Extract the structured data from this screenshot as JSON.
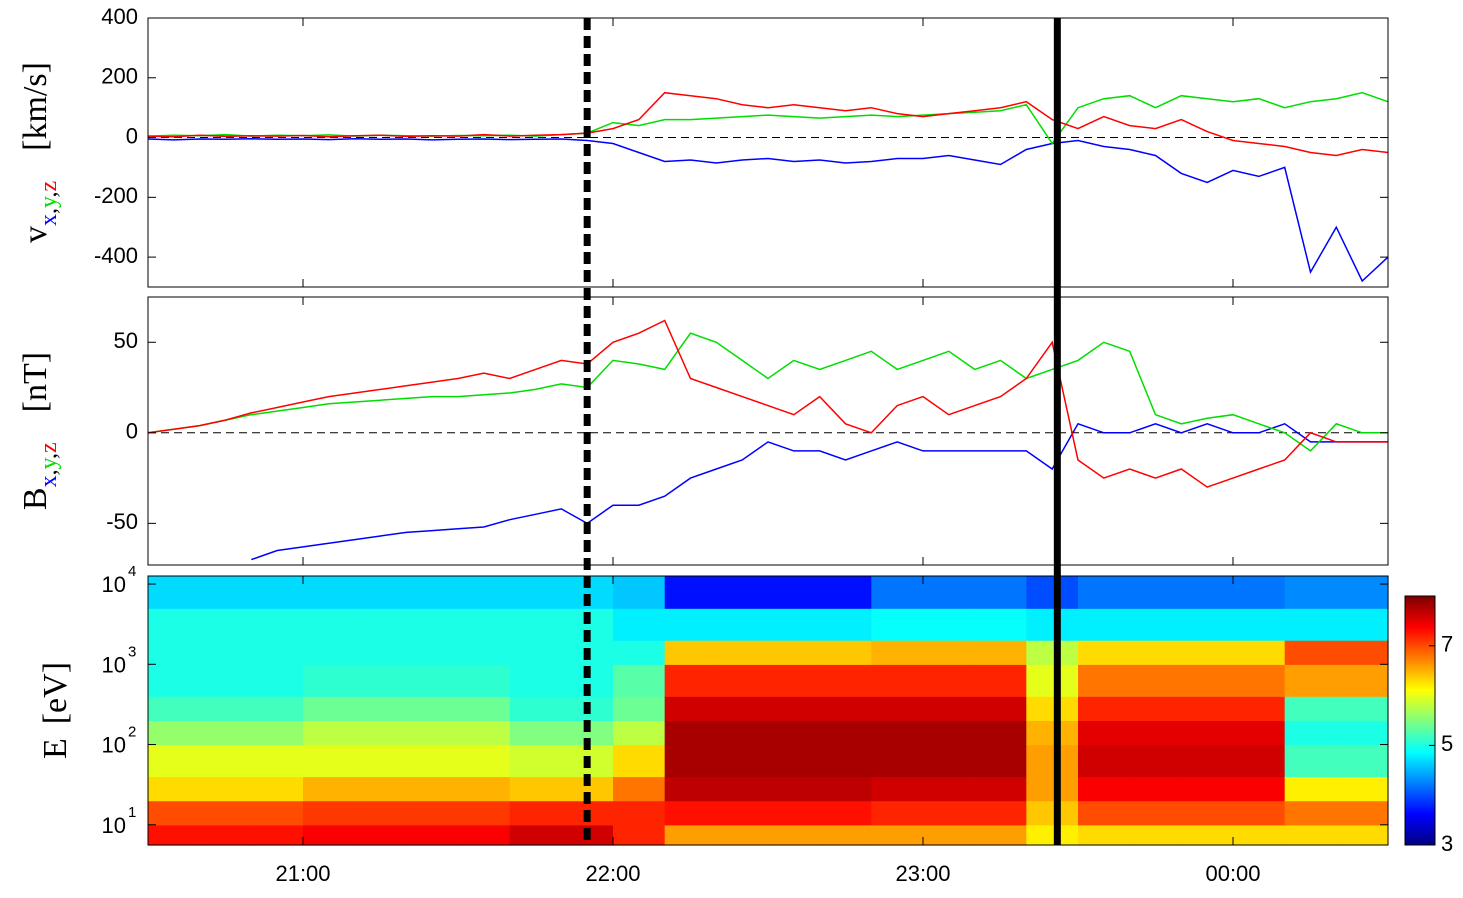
{
  "vlines": [
    {
      "time": "21:55",
      "style": "dashed"
    },
    {
      "time": "23:26",
      "style": "solid"
    }
  ],
  "chart_data": [
    {
      "type": "line",
      "ylabel": "v",
      "ylabel_separator": ",",
      "yunit": "[km/s]",
      "xlim": [
        "20:30",
        "00:30"
      ],
      "xticks": [
        "21:00",
        "22:00",
        "23:00",
        "00:00"
      ],
      "ylim": [
        -500,
        400
      ],
      "yticks": [
        400,
        200,
        0,
        -200,
        -400
      ],
      "hline": 0,
      "x": [
        "20:30",
        "20:35",
        "20:40",
        "20:45",
        "20:50",
        "20:55",
        "21:00",
        "21:05",
        "21:10",
        "21:15",
        "21:20",
        "21:25",
        "21:30",
        "21:35",
        "21:40",
        "21:45",
        "21:50",
        "21:55",
        "22:00",
        "22:05",
        "22:10",
        "22:15",
        "22:20",
        "22:25",
        "22:30",
        "22:35",
        "22:40",
        "22:45",
        "22:50",
        "22:55",
        "23:00",
        "23:05",
        "23:10",
        "23:15",
        "23:20",
        "23:25",
        "23:30",
        "23:35",
        "23:40",
        "23:45",
        "23:50",
        "23:55",
        "00:00",
        "00:05",
        "00:10",
        "00:15",
        "00:20",
        "00:25",
        "00:30"
      ],
      "series": [
        {
          "name": "x",
          "color": "#0000ff",
          "values": [
            -5,
            -8,
            -5,
            -6,
            -4,
            -6,
            -5,
            -7,
            -4,
            -6,
            -5,
            -8,
            -6,
            -5,
            -7,
            -6,
            -5,
            -10,
            -20,
            -50,
            -80,
            -75,
            -85,
            -75,
            -70,
            -80,
            -75,
            -85,
            -80,
            -70,
            -70,
            -60,
            -75,
            -90,
            -40,
            -20,
            -10,
            -30,
            -40,
            -60,
            -120,
            -150,
            -110,
            -130,
            -100,
            -450,
            -300,
            -480,
            -400
          ]
        },
        {
          "name": "y",
          "color": "#00dd00",
          "values": [
            5,
            8,
            6,
            10,
            5,
            8,
            6,
            9,
            5,
            8,
            6,
            5,
            7,
            6,
            8,
            5,
            10,
            15,
            50,
            40,
            60,
            60,
            65,
            70,
            75,
            70,
            65,
            70,
            75,
            70,
            75,
            80,
            85,
            90,
            110,
            -20,
            100,
            130,
            140,
            100,
            140,
            130,
            120,
            130,
            100,
            120,
            130,
            150,
            120
          ]
        },
        {
          "name": "z",
          "color": "#ff0000",
          "values": [
            5,
            3,
            8,
            4,
            6,
            5,
            7,
            3,
            6,
            8,
            4,
            6,
            5,
            10,
            5,
            8,
            10,
            15,
            30,
            60,
            150,
            140,
            130,
            110,
            100,
            110,
            100,
            90,
            100,
            80,
            70,
            80,
            90,
            100,
            120,
            60,
            30,
            70,
            40,
            30,
            60,
            20,
            -10,
            -20,
            -30,
            -50,
            -60,
            -40,
            -50
          ]
        }
      ]
    },
    {
      "type": "line",
      "ylabel": "B",
      "ylabel_separator": ",",
      "yunit": "[nT]",
      "xlim": [
        "20:30",
        "00:30"
      ],
      "xticks": [
        "21:00",
        "22:00",
        "23:00",
        "00:00"
      ],
      "ylim": [
        -73,
        75
      ],
      "yticks": [
        50,
        0,
        -50
      ],
      "hline": 0,
      "x": [
        "20:30",
        "20:35",
        "20:40",
        "20:45",
        "20:50",
        "20:55",
        "21:00",
        "21:05",
        "21:10",
        "21:15",
        "21:20",
        "21:25",
        "21:30",
        "21:35",
        "21:40",
        "21:45",
        "21:50",
        "21:55",
        "22:00",
        "22:05",
        "22:10",
        "22:15",
        "22:20",
        "22:25",
        "22:30",
        "22:35",
        "22:40",
        "22:45",
        "22:50",
        "22:55",
        "23:00",
        "23:05",
        "23:10",
        "23:15",
        "23:20",
        "23:25",
        "23:30",
        "23:35",
        "23:40",
        "23:45",
        "23:50",
        "23:55",
        "00:00",
        "00:05",
        "00:10",
        "00:15",
        "00:20",
        "00:25",
        "00:30"
      ],
      "series": [
        {
          "name": "x",
          "color": "#0000ff",
          "values": [
            null,
            null,
            null,
            null,
            -70,
            -65,
            -63,
            -61,
            -59,
            -57,
            -55,
            -54,
            -53,
            -52,
            -48,
            -45,
            -42,
            -50,
            -40,
            -40,
            -35,
            -25,
            -20,
            -15,
            -5,
            -10,
            -10,
            -15,
            -10,
            -5,
            -10,
            -10,
            -10,
            -10,
            -10,
            -20,
            5,
            0,
            0,
            5,
            0,
            5,
            0,
            0,
            5,
            -5,
            -5,
            -5,
            -5
          ]
        },
        {
          "name": "y",
          "color": "#00dd00",
          "values": [
            0,
            2,
            4,
            7,
            10,
            12,
            14,
            16,
            17,
            18,
            19,
            20,
            20,
            21,
            22,
            24,
            27,
            25,
            40,
            38,
            35,
            55,
            50,
            40,
            30,
            40,
            35,
            40,
            45,
            35,
            40,
            45,
            35,
            40,
            30,
            35,
            40,
            50,
            45,
            10,
            5,
            8,
            10,
            5,
            0,
            -10,
            5,
            0,
            0
          ]
        },
        {
          "name": "z",
          "color": "#ff0000",
          "values": [
            0,
            2,
            4,
            7,
            11,
            14,
            17,
            20,
            22,
            24,
            26,
            28,
            30,
            33,
            30,
            35,
            40,
            38,
            50,
            55,
            62,
            30,
            25,
            20,
            15,
            10,
            20,
            5,
            0,
            15,
            20,
            10,
            15,
            20,
            30,
            50,
            -15,
            -25,
            -20,
            -25,
            -20,
            -30,
            -25,
            -20,
            -15,
            0,
            -5,
            -5,
            -5
          ]
        }
      ]
    },
    {
      "type": "heatmap",
      "ylabel": "E",
      "yunit": "[eV]",
      "log_y": true,
      "xlim": [
        "20:30",
        "00:30"
      ],
      "xticks": [
        "21:00",
        "22:00",
        "23:00",
        "00:00"
      ],
      "ylim": [
        5.6,
        12600
      ],
      "yticks": [
        {
          "value": 10,
          "label": "10",
          "exponent": "1"
        },
        {
          "value": 100,
          "label": "10",
          "exponent": "2"
        },
        {
          "value": 1000,
          "label": "10",
          "exponent": "3"
        },
        {
          "value": 10000,
          "label": "10",
          "exponent": "4"
        }
      ],
      "x": [
        "20:30",
        "20:40",
        "20:50",
        "21:00",
        "21:10",
        "21:20",
        "21:30",
        "21:40",
        "21:50",
        "22:00",
        "22:10",
        "22:20",
        "22:30",
        "22:40",
        "22:50",
        "23:00",
        "23:10",
        "23:20",
        "23:30",
        "23:40",
        "23:50",
        "00:00",
        "00:10",
        "00:20"
      ],
      "energy_edges": [
        5.6,
        10,
        20,
        40,
        100,
        200,
        400,
        1000,
        2000,
        5000,
        12600
      ],
      "clim": [
        3,
        8
      ],
      "cticks": [
        3,
        5,
        7
      ],
      "z": [
        [
          7.3,
          7.0,
          6.3,
          6.0,
          5.6,
          5.2,
          5.0,
          5.0,
          5.0,
          4.7
        ],
        [
          7.3,
          7.0,
          6.3,
          6.0,
          5.6,
          5.2,
          5.0,
          5.0,
          5.0,
          4.7
        ],
        [
          7.3,
          7.0,
          6.3,
          6.0,
          5.6,
          5.2,
          5.0,
          5.0,
          5.0,
          4.7
        ],
        [
          7.4,
          7.1,
          6.5,
          6.0,
          5.8,
          5.4,
          5.1,
          5.0,
          5.0,
          4.7
        ],
        [
          7.4,
          7.1,
          6.5,
          6.0,
          5.8,
          5.4,
          5.1,
          5.0,
          5.0,
          4.7
        ],
        [
          7.4,
          7.1,
          6.5,
          6.0,
          5.8,
          5.4,
          5.1,
          5.0,
          5.0,
          4.7
        ],
        [
          7.4,
          7.1,
          6.5,
          6.0,
          5.8,
          5.4,
          5.1,
          5.0,
          5.0,
          4.7
        ],
        [
          7.6,
          7.2,
          6.4,
          5.9,
          5.5,
          5.1,
          5.0,
          5.0,
          5.0,
          4.7
        ],
        [
          7.6,
          7.2,
          6.4,
          5.9,
          5.5,
          5.1,
          5.0,
          5.0,
          5.0,
          4.7
        ],
        [
          7.2,
          7.2,
          6.8,
          6.3,
          5.8,
          5.4,
          5.3,
          5.0,
          4.8,
          4.6
        ],
        [
          6.6,
          7.3,
          7.7,
          7.8,
          7.8,
          7.6,
          7.2,
          6.4,
          4.8,
          3.7
        ],
        [
          6.6,
          7.3,
          7.7,
          7.8,
          7.8,
          7.6,
          7.2,
          6.4,
          4.8,
          3.7
        ],
        [
          6.6,
          7.3,
          7.7,
          7.8,
          7.8,
          7.6,
          7.2,
          6.4,
          4.8,
          3.7
        ],
        [
          6.6,
          7.3,
          7.7,
          7.8,
          7.8,
          7.6,
          7.2,
          6.4,
          4.8,
          3.7
        ],
        [
          6.6,
          7.2,
          7.6,
          7.8,
          7.8,
          7.6,
          7.2,
          6.5,
          4.9,
          4.2
        ],
        [
          6.6,
          7.2,
          7.6,
          7.8,
          7.8,
          7.6,
          7.2,
          6.5,
          4.9,
          4.2
        ],
        [
          6.6,
          7.2,
          7.6,
          7.8,
          7.8,
          7.6,
          7.2,
          6.5,
          4.9,
          4.2
        ],
        [
          6.2,
          6.4,
          6.6,
          6.6,
          6.5,
          6.3,
          6.0,
          5.8,
          4.8,
          4.0
        ],
        [
          6.3,
          7.0,
          7.4,
          7.6,
          7.5,
          7.2,
          6.8,
          6.3,
          4.8,
          4.2
        ],
        [
          6.3,
          7.0,
          7.4,
          7.6,
          7.5,
          7.2,
          6.8,
          6.3,
          4.8,
          4.2
        ],
        [
          6.3,
          7.0,
          7.4,
          7.6,
          7.5,
          7.2,
          6.8,
          6.3,
          4.8,
          4.2
        ],
        [
          6.3,
          7.0,
          7.4,
          7.6,
          7.5,
          7.2,
          6.8,
          6.3,
          4.8,
          4.2
        ],
        [
          6.3,
          6.8,
          6.2,
          5.2,
          5.0,
          5.2,
          6.6,
          7.0,
          4.8,
          4.3
        ],
        [
          6.3,
          6.8,
          6.2,
          5.2,
          5.0,
          5.2,
          6.6,
          7.0,
          4.8,
          4.3
        ]
      ]
    }
  ]
}
